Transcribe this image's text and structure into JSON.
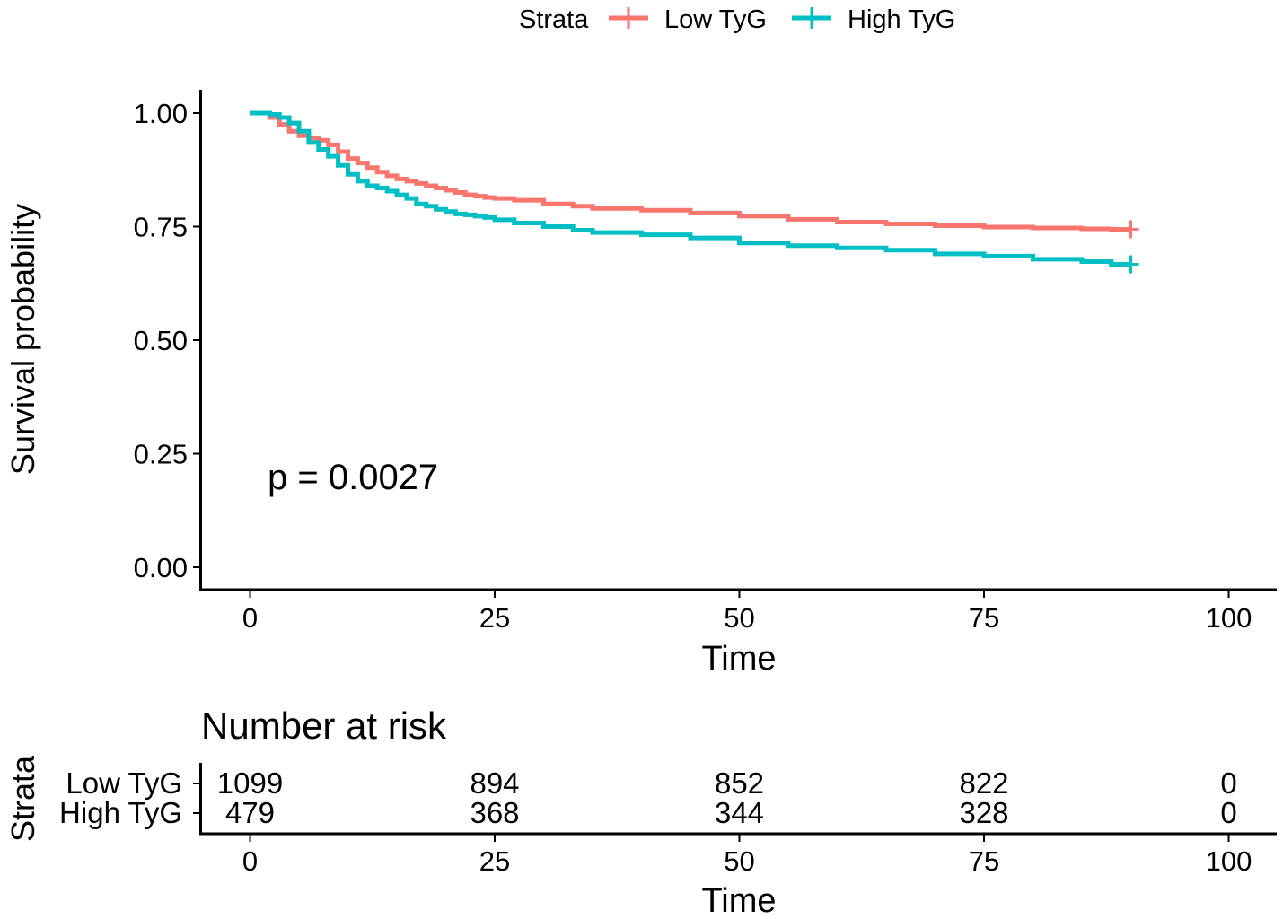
{
  "chart_data": {
    "type": "line",
    "legend": {
      "title": "Strata",
      "entries": [
        "Low TyG",
        "High TyG"
      ],
      "placement": "top"
    },
    "series": [
      {
        "name": "Low TyG",
        "color": "#F8766D",
        "x": [
          0,
          2,
          3,
          4,
          5,
          6,
          7,
          8,
          9,
          10,
          11,
          12,
          13,
          14,
          15,
          16,
          17,
          18,
          19,
          20,
          21,
          22,
          23,
          24,
          25,
          27,
          30,
          33,
          35,
          40,
          45,
          50,
          55,
          60,
          65,
          70,
          75,
          80,
          85,
          88,
          90
        ],
        "y": [
          1.0,
          0.99,
          0.975,
          0.96,
          0.95,
          0.945,
          0.94,
          0.93,
          0.915,
          0.9,
          0.89,
          0.88,
          0.87,
          0.862,
          0.855,
          0.85,
          0.845,
          0.84,
          0.835,
          0.83,
          0.825,
          0.82,
          0.817,
          0.814,
          0.812,
          0.808,
          0.8,
          0.795,
          0.79,
          0.786,
          0.78,
          0.773,
          0.766,
          0.76,
          0.756,
          0.752,
          0.749,
          0.747,
          0.745,
          0.744,
          0.744
        ]
      },
      {
        "name": "High TyG",
        "color": "#00BFC4",
        "x": [
          0,
          2,
          3,
          4,
          5,
          6,
          7,
          8,
          9,
          10,
          11,
          12,
          13,
          14,
          15,
          16,
          17,
          18,
          19,
          20,
          21,
          22,
          23,
          24,
          25,
          27,
          30,
          33,
          35,
          40,
          45,
          50,
          55,
          60,
          65,
          70,
          75,
          80,
          85,
          88,
          90
        ],
        "y": [
          1.0,
          0.997,
          0.99,
          0.978,
          0.96,
          0.935,
          0.92,
          0.905,
          0.885,
          0.865,
          0.85,
          0.84,
          0.835,
          0.828,
          0.82,
          0.812,
          0.8,
          0.795,
          0.788,
          0.783,
          0.778,
          0.776,
          0.773,
          0.77,
          0.765,
          0.758,
          0.75,
          0.742,
          0.737,
          0.732,
          0.725,
          0.714,
          0.708,
          0.703,
          0.698,
          0.69,
          0.685,
          0.678,
          0.673,
          0.667,
          0.667
        ]
      }
    ],
    "annotation": "p = 0.0027",
    "ylabel": "Survival probability",
    "xlabel": "Time",
    "xlim": [
      -2,
      105
    ],
    "ylim": [
      -0.05,
      1.05
    ],
    "xticks": [
      0,
      25,
      50,
      75,
      100
    ],
    "xtick_labels": [
      "0",
      "25",
      "50",
      "75",
      "100"
    ],
    "yticks": [
      0,
      0.25,
      0.5,
      0.75,
      1.0
    ],
    "ytick_labels": [
      "0.00",
      "0.25",
      "0.50",
      "0.75",
      "1.00"
    ],
    "grid": false,
    "risk_table": {
      "title": "Number at risk",
      "ylabel": "Strata",
      "xlabel": "Time",
      "times": [
        0,
        25,
        50,
        75,
        100
      ],
      "tick_labels": [
        "0",
        "25",
        "50",
        "75",
        "100"
      ],
      "rows": [
        {
          "name": "Low TyG",
          "color": "#F8766D",
          "values": [
            "1099",
            "894",
            "852",
            "822",
            "0"
          ]
        },
        {
          "name": "High TyG",
          "color": "#00BFC4",
          "values": [
            "479",
            "368",
            "344",
            "328",
            "0"
          ]
        }
      ]
    }
  }
}
